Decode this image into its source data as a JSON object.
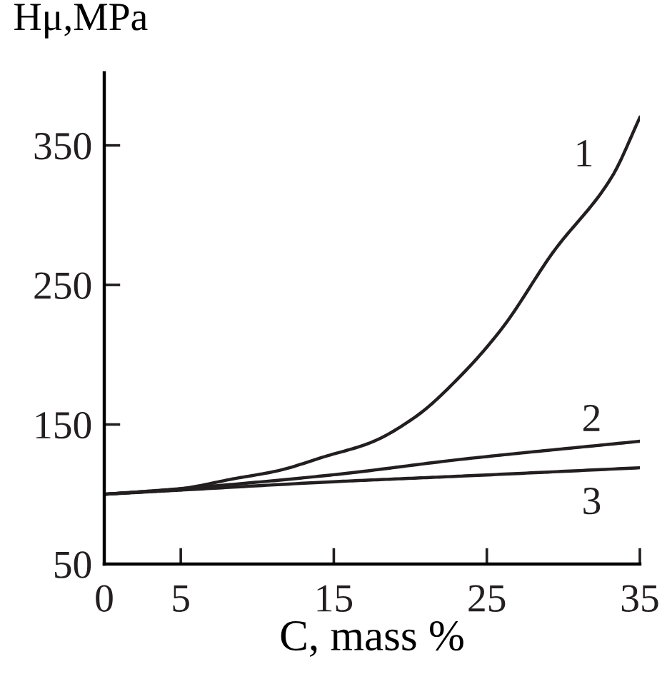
{
  "chart_data": {
    "type": "line",
    "xlabel": "C, mass %",
    "ylabel": "Hμ,MPa",
    "xlim": [
      0,
      35
    ],
    "xticks": [
      0,
      5,
      15,
      25,
      35
    ],
    "ylim": [
      50,
      402
    ],
    "yticks": [
      50,
      150,
      250,
      350
    ],
    "grid": false,
    "legend": false,
    "marker": "none",
    "line_style": "solid",
    "series": [
      {
        "name": "1",
        "color": "#231f20",
        "x": [
          0,
          5,
          8.4,
          11.4,
          14.4,
          17.4,
          20.4,
          23.3,
          26,
          29.3,
          33.2,
          35
        ],
        "values": [
          100,
          104,
          111,
          117,
          127,
          137,
          156,
          185,
          219,
          273,
          328,
          370
        ]
      },
      {
        "name": "2",
        "color": "#231f20",
        "x": [
          0,
          5,
          15,
          23.3,
          35
        ],
        "values": [
          100,
          104,
          114,
          125,
          138
        ]
      },
      {
        "name": "3",
        "color": "#231f20",
        "x": [
          0,
          5,
          15,
          23.3,
          35
        ],
        "values": [
          100,
          103,
          109,
          113,
          119
        ]
      }
    ]
  }
}
